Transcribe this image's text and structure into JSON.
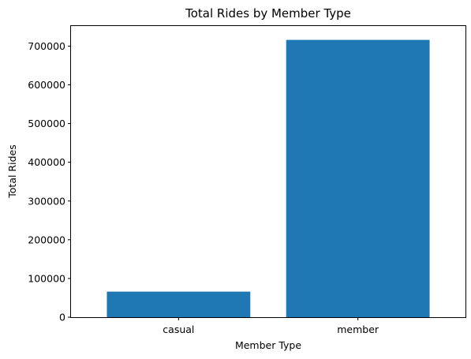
{
  "chart_data": {
    "type": "bar",
    "title": "Total Rides by Member Type",
    "xlabel": "Member Type",
    "ylabel": "Total Rides",
    "categories": [
      "casual",
      "member"
    ],
    "values": [
      66000,
      716000
    ],
    "ylim": [
      0,
      751800
    ],
    "yticks": [
      0,
      100000,
      200000,
      300000,
      400000,
      500000,
      600000,
      700000
    ],
    "grid": false,
    "bar_color": "#1f77b4"
  }
}
